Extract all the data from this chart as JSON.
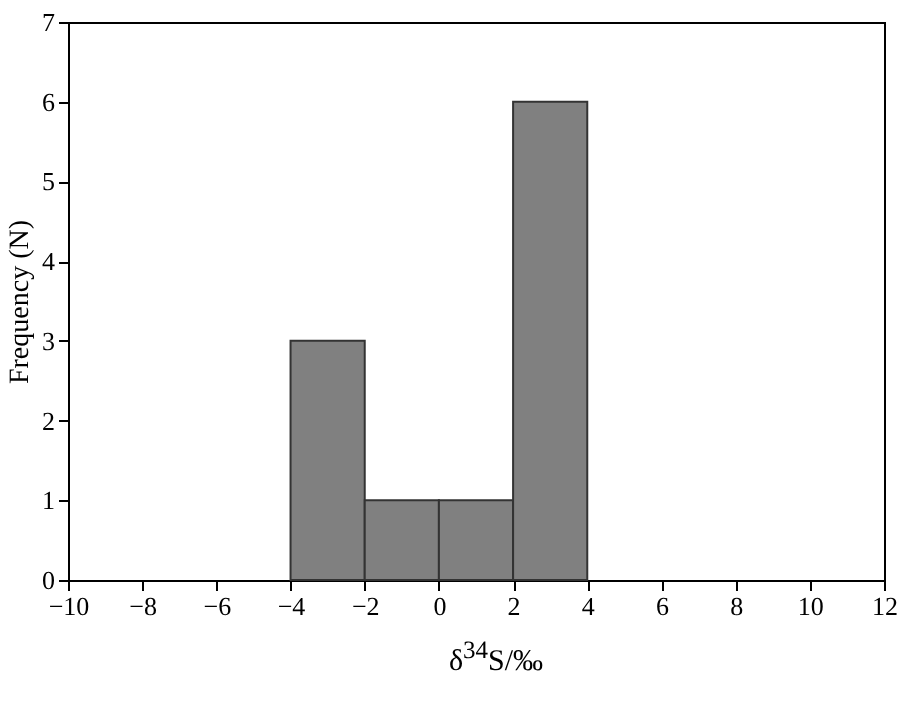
{
  "chart_data": {
    "type": "histogram",
    "xlabel": "δ$^{34}$S/‰",
    "ylabel": "Frequency (N)",
    "bins": [
      -10,
      -8,
      -6,
      -4,
      -2,
      0,
      2,
      4,
      6,
      8,
      10,
      12
    ],
    "values": [
      0,
      0,
      0,
      3,
      1,
      1,
      6,
      0,
      0,
      0,
      0
    ],
    "color": "#808080",
    "xlim": [
      -10,
      12
    ],
    "xticks": [
      -10,
      -8,
      -6,
      -4,
      -2,
      0,
      2,
      4,
      6,
      8,
      10,
      12
    ],
    "ylim": [
      0,
      7
    ],
    "yticks": [
      0,
      1,
      2,
      3,
      4,
      5,
      6,
      7
    ],
    "grid": false
  }
}
